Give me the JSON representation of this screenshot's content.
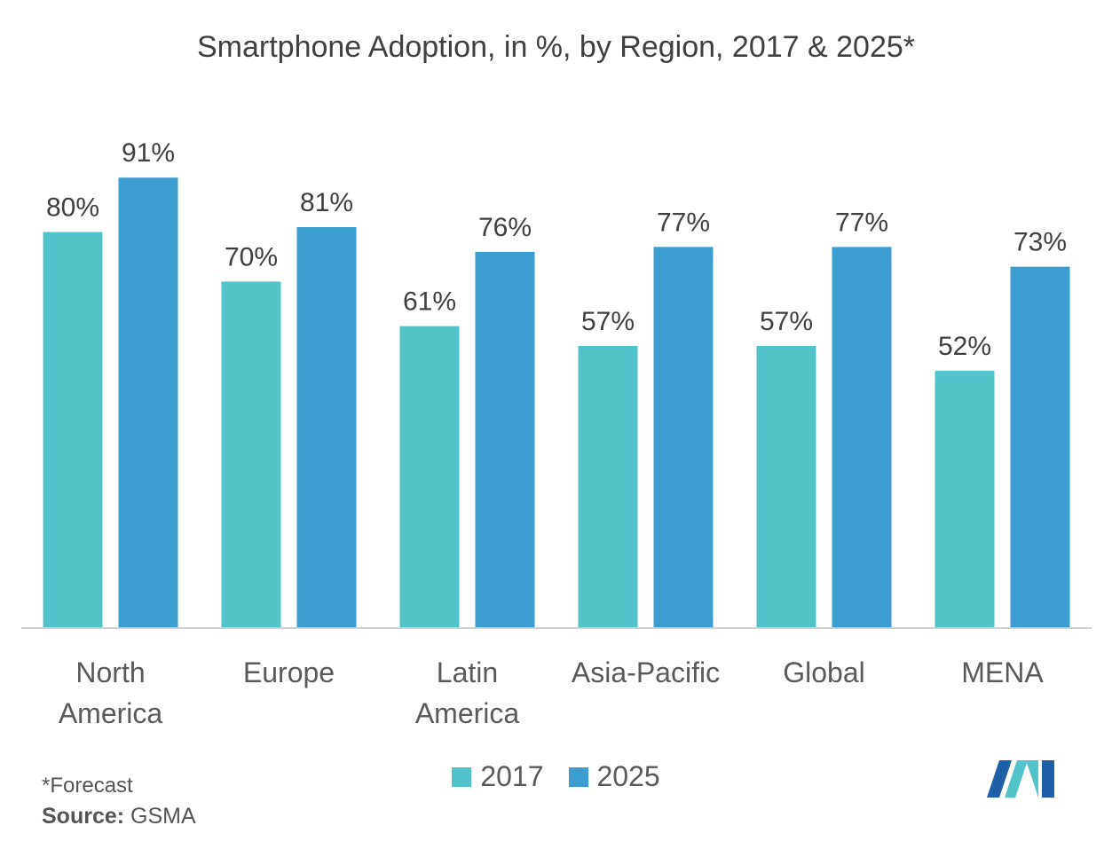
{
  "chart_data": {
    "type": "bar",
    "title": "Smartphone Adoption, in %, by Region, 2017 & 2025*",
    "categories": [
      "North America",
      "Europe",
      "Latin America",
      "Asia-Pacific",
      "Global",
      "MENA"
    ],
    "category_lines": [
      [
        "North",
        "America"
      ],
      [
        "Europe"
      ],
      [
        "Latin",
        "America"
      ],
      [
        "Asia-Pacific"
      ],
      [
        "Global"
      ],
      [
        "MENA"
      ]
    ],
    "series": [
      {
        "name": "2017",
        "color": "#52c4c9",
        "values": [
          80,
          70,
          61,
          57,
          57,
          52
        ],
        "labels": [
          "80%",
          "70%",
          "61%",
          "57%",
          "57%",
          "52%"
        ]
      },
      {
        "name": "2025",
        "color": "#3c9dd0",
        "values": [
          91,
          81,
          76,
          77,
          77,
          73
        ],
        "labels": [
          "91%",
          "81%",
          "76%",
          "77%",
          "77%",
          "73%"
        ]
      }
    ],
    "ylim": [
      0,
      100
    ],
    "xlabel": "",
    "ylabel": "",
    "grid": false,
    "legend_position": "bottom"
  },
  "footnote": "*Forecast",
  "source": {
    "label": "Source:",
    "value": "GSMA"
  },
  "logo": {
    "icon": "mordor-intelligence-logo-icon",
    "colors": [
      "#1f5fa8",
      "#52c4c9"
    ]
  }
}
